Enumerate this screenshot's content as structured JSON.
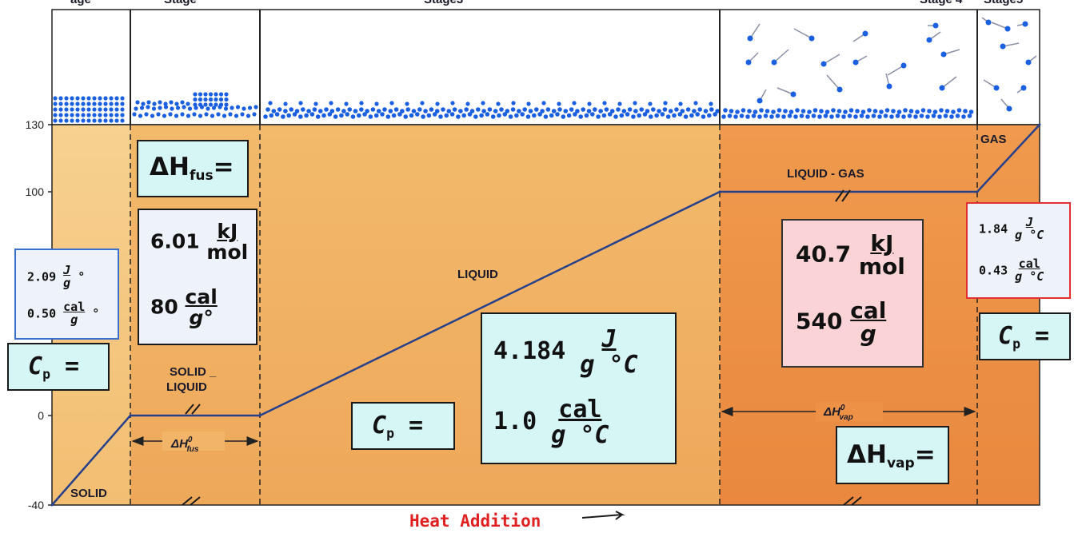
{
  "chart_data": {
    "type": "line",
    "xlabel": "Heat Addition",
    "ylim": [
      -40,
      130
    ],
    "y_ticks": [
      130,
      100,
      0,
      -40
    ],
    "series": [
      {
        "x": [
          0,
          1,
          2,
          3,
          4,
          5
        ],
        "y": [
          -40,
          0,
          0,
          100,
          100,
          130
        ]
      }
    ],
    "region_labels": [
      "SOLID",
      "SOLID _ LIQUID",
      "LIQUID",
      "LIQUID - GAS",
      "GAS"
    ],
    "arrow_labels": {
      "fus": "ΔH",
      "fus_sup": "0",
      "fus_sub": "fus",
      "vap": "ΔH",
      "vap_sup": "0",
      "vap_sub": "vap"
    },
    "top_header": [
      "age",
      "Stage",
      "Stage3",
      "Stage 4",
      "Stage5"
    ]
  },
  "boxes": {
    "cp_solid": {
      "j_val": "2.09",
      "j_num": "J",
      "j_den": "g",
      "j_unit": "°",
      "cal_val": "0.50",
      "cal_num": "cal",
      "cal_den": "g",
      "cal_unit": "°"
    },
    "cp_label": {
      "c": "C",
      "sub": "p",
      "eq": " ="
    },
    "dh_fus_label": {
      "d": "ΔH",
      "sub": "fus",
      "eq": "="
    },
    "dh_fus_values": {
      "kj_val": "6.01",
      "kj_num": "kJ",
      "kj_den": "mol",
      "cal_val": "80",
      "cal_num": "cal",
      "cal_den": "g°"
    },
    "cp_liquid": {
      "j_val": "4.184",
      "j_num": "J",
      "j_den": "g °C",
      "cal_val": "1.0",
      "cal_num": "cal",
      "cal_den": "g °C"
    },
    "dh_vap_values": {
      "kj_val": "40.7",
      "kj_num": "kJ",
      "kj_den": "mol",
      "cal_val": "540",
      "cal_num": "cal",
      "cal_den": "g"
    },
    "dh_vap_label": {
      "d": "ΔH",
      "sub": "vap",
      "eq": "="
    },
    "cp_gas": {
      "j_val": "1.84",
      "j_num": "J",
      "j_den": "g °C",
      "cal_val": "0.43",
      "cal_num": "cal",
      "cal_den": "g °C"
    }
  },
  "colors": {
    "solid_zone": "#f6c880",
    "mid_zone": "#f2b468",
    "vap_zone": "#ee9248",
    "curve": "#27408b",
    "particle": "#1a5fe0",
    "heat_label": "#e02020"
  }
}
